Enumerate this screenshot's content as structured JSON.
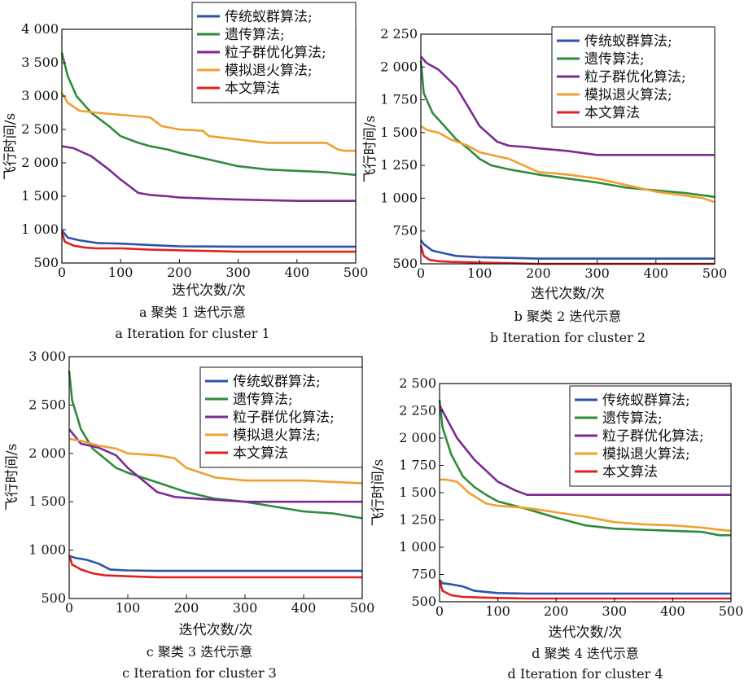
{
  "series_styles": [
    {
      "name": "传统蚁群算法;",
      "color": "#2a55a8"
    },
    {
      "name": "遗传算法;",
      "color": "#2e8b3c"
    },
    {
      "name": "粒子群优化算法;",
      "color": "#7b2b92"
    },
    {
      "name": "模拟退火算法;",
      "color": "#f0a030"
    },
    {
      "name": "本文算法",
      "color": "#e02020"
    }
  ],
  "chart_data": [
    {
      "type": "line",
      "caption_zh": "a  聚类 1 迭代示意",
      "caption_en": "a  Iteration for cluster 1",
      "xlabel": "迭代次数/次",
      "ylabel": "飞行时间/s",
      "xlim": [
        0,
        500
      ],
      "ylim": [
        500,
        4000
      ],
      "xticks": [
        0,
        100,
        200,
        300,
        400,
        500
      ],
      "xtick_labels": [
        "0",
        "100",
        "200",
        "300",
        "400",
        "500"
      ],
      "yticks": [
        500,
        1000,
        1500,
        2000,
        2500,
        3000,
        3500,
        4000
      ],
      "ytick_labels": [
        "500",
        "1 000",
        "1 500",
        "2 000",
        "2 500",
        "3 000",
        "3 500",
        "4 000"
      ],
      "legend_position": "top-right",
      "series": [
        {
          "name": "传统蚁群算法;",
          "x": [
            0,
            10,
            30,
            60,
            100,
            150,
            200,
            300,
            400,
            500
          ],
          "y": [
            990,
            880,
            840,
            800,
            790,
            770,
            750,
            745,
            745,
            745
          ]
        },
        {
          "name": "遗传算法;",
          "x": [
            0,
            10,
            25,
            50,
            80,
            100,
            130,
            150,
            180,
            200,
            250,
            300,
            350,
            400,
            450,
            500
          ],
          "y": [
            3650,
            3300,
            3000,
            2750,
            2550,
            2400,
            2300,
            2250,
            2200,
            2150,
            2050,
            1950,
            1900,
            1880,
            1860,
            1820
          ]
        },
        {
          "name": "粒子群优化算法;",
          "x": [
            0,
            20,
            50,
            80,
            100,
            130,
            150,
            180,
            200,
            300,
            400,
            500
          ],
          "y": [
            2250,
            2220,
            2100,
            1900,
            1750,
            1550,
            1520,
            1500,
            1480,
            1450,
            1430,
            1430
          ]
        },
        {
          "name": "模拟退火算法;",
          "x": [
            0,
            10,
            30,
            60,
            100,
            150,
            170,
            200,
            240,
            250,
            300,
            350,
            400,
            450,
            470,
            480,
            500
          ],
          "y": [
            3050,
            2900,
            2780,
            2750,
            2720,
            2680,
            2550,
            2500,
            2480,
            2400,
            2350,
            2300,
            2300,
            2300,
            2200,
            2180,
            2180
          ]
        },
        {
          "name": "本文算法",
          "x": [
            0,
            5,
            20,
            40,
            60,
            100,
            150,
            200,
            250,
            300,
            350,
            400,
            500
          ],
          "y": [
            960,
            820,
            760,
            730,
            720,
            720,
            700,
            690,
            680,
            670,
            670,
            670,
            670
          ]
        }
      ]
    },
    {
      "type": "line",
      "caption_zh": "b  聚类 2 迭代示意",
      "caption_en": "b  Iteration for cluster 2",
      "xlabel": "迭代次数/次",
      "ylabel": "飞行时间/s",
      "xlim": [
        0,
        500
      ],
      "ylim": [
        500,
        2250
      ],
      "xticks": [
        0,
        100,
        200,
        300,
        400,
        500
      ],
      "xtick_labels": [
        "0",
        "100",
        "200",
        "300",
        "400",
        "500"
      ],
      "yticks": [
        500,
        750,
        1000,
        1250,
        1500,
        1750,
        2000,
        2250
      ],
      "ytick_labels": [
        "500",
        "750",
        "1 000",
        "1 250",
        "1 500",
        "1 750",
        "2 000",
        "2 250"
      ],
      "legend_position": "top-right",
      "series": [
        {
          "name": "传统蚁群算法;",
          "x": [
            0,
            5,
            20,
            40,
            60,
            100,
            150,
            200,
            300,
            400,
            500
          ],
          "y": [
            680,
            650,
            600,
            580,
            560,
            550,
            545,
            540,
            540,
            540,
            540
          ]
        },
        {
          "name": "遗传算法;",
          "x": [
            0,
            5,
            20,
            40,
            60,
            80,
            100,
            120,
            150,
            200,
            250,
            300,
            350,
            400,
            450,
            500
          ],
          "y": [
            2050,
            1800,
            1650,
            1550,
            1450,
            1380,
            1300,
            1250,
            1220,
            1180,
            1150,
            1120,
            1080,
            1060,
            1040,
            1010
          ]
        },
        {
          "name": "粒子群优化算法;",
          "x": [
            0,
            10,
            30,
            60,
            80,
            100,
            130,
            150,
            180,
            200,
            250,
            300,
            400,
            500
          ],
          "y": [
            2080,
            2030,
            1980,
            1850,
            1700,
            1550,
            1430,
            1400,
            1390,
            1380,
            1360,
            1330,
            1330,
            1330
          ]
        },
        {
          "name": "模拟退火算法;",
          "x": [
            0,
            10,
            30,
            50,
            80,
            100,
            150,
            200,
            250,
            300,
            350,
            400,
            450,
            480,
            500
          ],
          "y": [
            1550,
            1520,
            1500,
            1450,
            1400,
            1350,
            1300,
            1200,
            1180,
            1150,
            1100,
            1050,
            1020,
            1000,
            970
          ]
        },
        {
          "name": "本文算法",
          "x": [
            0,
            5,
            15,
            30,
            50,
            100,
            150,
            200,
            300,
            400,
            500
          ],
          "y": [
            640,
            560,
            530,
            520,
            515,
            510,
            505,
            500,
            500,
            500,
            500
          ]
        }
      ]
    },
    {
      "type": "line",
      "caption_zh": "c  聚类 3 迭代示意",
      "caption_en": "c  Iteration for cluster 3",
      "xlabel": "迭代次数/次",
      "ylabel": "飞行时间/s",
      "xlim": [
        0,
        500
      ],
      "ylim": [
        500,
        3000
      ],
      "xticks": [
        0,
        100,
        200,
        300,
        400,
        500
      ],
      "xtick_labels": [
        "0",
        "100",
        "200",
        "300",
        "400",
        "500"
      ],
      "yticks": [
        500,
        1000,
        1500,
        2000,
        2500,
        3000
      ],
      "ytick_labels": [
        "500",
        "1 000",
        "1 500",
        "2 000",
        "2 500",
        "3 000"
      ],
      "legend_position": "top-right",
      "series": [
        {
          "name": "传统蚁群算法;",
          "x": [
            0,
            10,
            30,
            50,
            70,
            100,
            150,
            200,
            300,
            400,
            500
          ],
          "y": [
            940,
            920,
            900,
            860,
            800,
            790,
            785,
            785,
            785,
            785,
            785
          ]
        },
        {
          "name": "遗传算法;",
          "x": [
            0,
            5,
            20,
            40,
            60,
            80,
            100,
            150,
            200,
            250,
            300,
            350,
            400,
            450,
            500
          ],
          "y": [
            2850,
            2550,
            2250,
            2050,
            1950,
            1850,
            1800,
            1700,
            1600,
            1530,
            1500,
            1450,
            1400,
            1380,
            1330
          ]
        },
        {
          "name": "粒子群优化算法;",
          "x": [
            0,
            20,
            50,
            80,
            100,
            130,
            150,
            180,
            200,
            250,
            300,
            400,
            500
          ],
          "y": [
            2250,
            2100,
            2060,
            1980,
            1850,
            1700,
            1600,
            1550,
            1540,
            1520,
            1500,
            1500,
            1500
          ]
        },
        {
          "name": "模拟退火算法;",
          "x": [
            0,
            20,
            50,
            80,
            100,
            150,
            180,
            200,
            250,
            300,
            350,
            400,
            500
          ],
          "y": [
            2150,
            2130,
            2080,
            2050,
            2000,
            1980,
            1950,
            1850,
            1750,
            1720,
            1720,
            1720,
            1690
          ]
        },
        {
          "name": "本文算法",
          "x": [
            0,
            5,
            20,
            40,
            60,
            100,
            150,
            200,
            300,
            400,
            500
          ],
          "y": [
            950,
            850,
            800,
            760,
            740,
            730,
            720,
            720,
            720,
            720,
            720
          ]
        }
      ]
    },
    {
      "type": "line",
      "caption_zh": "d  聚类 4 迭代示意",
      "caption_en": "d  Iteration for cluster 4",
      "xlabel": "迭代次数/次",
      "ylabel": "飞行时间/s",
      "xlim": [
        0,
        500
      ],
      "ylim": [
        500,
        2500
      ],
      "xticks": [
        0,
        100,
        200,
        300,
        400,
        500
      ],
      "xtick_labels": [
        "0",
        "100",
        "200",
        "300",
        "400",
        "500"
      ],
      "yticks": [
        500,
        750,
        1000,
        1250,
        1500,
        1750,
        2000,
        2250,
        2500
      ],
      "ytick_labels": [
        "500",
        "750",
        "1 000",
        "1 250",
        "1 500",
        "1 750",
        "2 000",
        "2 250",
        "2 500"
      ],
      "legend_position": "top-right",
      "series": [
        {
          "name": "传统蚁群算法;",
          "x": [
            0,
            5,
            20,
            40,
            60,
            100,
            150,
            200,
            300,
            400,
            500
          ],
          "y": [
            700,
            670,
            660,
            640,
            600,
            580,
            575,
            575,
            575,
            575,
            575
          ]
        },
        {
          "name": "遗传算法;",
          "x": [
            0,
            5,
            20,
            40,
            60,
            80,
            100,
            150,
            200,
            250,
            300,
            350,
            400,
            450,
            480,
            500
          ],
          "y": [
            2350,
            2100,
            1850,
            1650,
            1550,
            1480,
            1420,
            1350,
            1270,
            1200,
            1170,
            1160,
            1150,
            1140,
            1110,
            1110
          ]
        },
        {
          "name": "粒子群优化算法;",
          "x": [
            0,
            10,
            30,
            60,
            80,
            100,
            130,
            150,
            200,
            300,
            400,
            500
          ],
          "y": [
            2300,
            2200,
            2000,
            1800,
            1700,
            1600,
            1520,
            1480,
            1480,
            1480,
            1480,
            1480
          ]
        },
        {
          "name": "模拟退火算法;",
          "x": [
            0,
            10,
            30,
            50,
            80,
            100,
            150,
            200,
            250,
            300,
            350,
            400,
            450,
            480,
            500
          ],
          "y": [
            1620,
            1620,
            1600,
            1500,
            1400,
            1380,
            1360,
            1320,
            1280,
            1230,
            1210,
            1200,
            1180,
            1160,
            1150
          ]
        },
        {
          "name": "本文算法",
          "x": [
            0,
            5,
            20,
            40,
            60,
            100,
            150,
            200,
            300,
            400,
            500
          ],
          "y": [
            700,
            600,
            560,
            545,
            540,
            535,
            530,
            530,
            530,
            530,
            530
          ]
        }
      ]
    }
  ]
}
